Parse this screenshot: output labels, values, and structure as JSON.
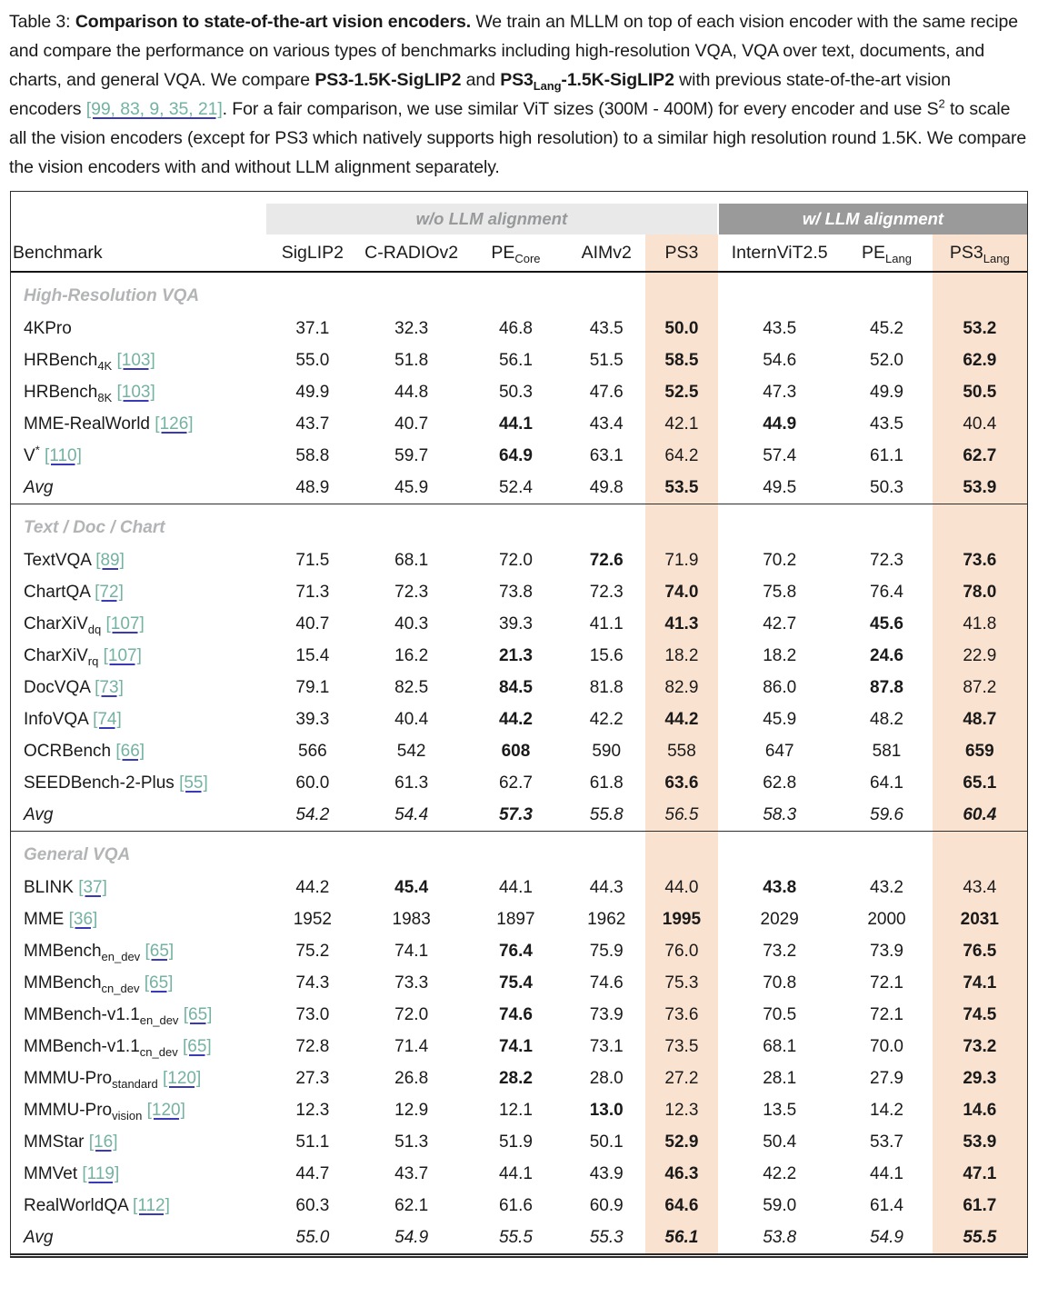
{
  "caption": {
    "segments": [
      {
        "text": "Table 3: "
      },
      {
        "text": "Comparison to state-of-the-art vision encoders.",
        "bold": true
      },
      {
        "text": " We train an MLLM on top of each vision encoder with the same recipe and compare the performance on various types of benchmarks including high-resolution VQA, VQA over text, documents, and charts, and general VQA. We compare "
      },
      {
        "text": "PS3-1.5K-SigLIP2",
        "bold": true
      },
      {
        "text": " and "
      },
      {
        "text": "PS3",
        "bold": true
      },
      {
        "text": "Lang",
        "bold": true,
        "sub": true
      },
      {
        "text": "-1.5K-SigLIP2",
        "bold": true
      },
      {
        "text": " with previous state-of-the-art vision encoders "
      },
      {
        "text": "[99, 83, 9, 35, 21]",
        "cite": true
      },
      {
        "text": ". For a fair comparison, we use similar ViT sizes (300M - 400M) for every encoder and use S"
      },
      {
        "text": "2",
        "sup": true
      },
      {
        "text": " to scale all the vision encoders (except for PS3 which natively supports high resolution) to a similar high resolution round 1.5K. We compare the vision encoders with and without LLM alignment separately."
      }
    ]
  },
  "table": {
    "group_headers": [
      {
        "label": "w/o LLM alignment",
        "span": 5,
        "style": "light"
      },
      {
        "label": "w/ LLM alignment",
        "span": 3,
        "style": "dark"
      }
    ],
    "columns": [
      {
        "label": "Benchmark"
      },
      {
        "label": "SigLIP2"
      },
      {
        "label": "C-RADIOv2"
      },
      {
        "label": "PE",
        "sub": "Core"
      },
      {
        "label": "AIMv2"
      },
      {
        "label": "PS3",
        "highlight": true
      },
      {
        "label": "InternViT2.5"
      },
      {
        "label": "PE",
        "sub": "Lang"
      },
      {
        "label": "PS3",
        "sub": "Lang",
        "highlight": true
      }
    ],
    "sections": [
      {
        "title": "High-Resolution VQA",
        "rows": [
          {
            "name": "4KPro",
            "values": [
              "37.1",
              "32.3",
              "46.8",
              "43.5",
              "50.0",
              "43.5",
              "45.2",
              "53.2"
            ],
            "bold": [
              4,
              7
            ]
          },
          {
            "name": "HRBench",
            "sub": "4K",
            "cite": "103",
            "values": [
              "55.0",
              "51.8",
              "56.1",
              "51.5",
              "58.5",
              "54.6",
              "52.0",
              "62.9"
            ],
            "bold": [
              4,
              7
            ]
          },
          {
            "name": "HRBench",
            "sub": "8K",
            "cite": "103",
            "values": [
              "49.9",
              "44.8",
              "50.3",
              "47.6",
              "52.5",
              "47.3",
              "49.9",
              "50.5"
            ],
            "bold": [
              4,
              7
            ]
          },
          {
            "name": "MME-RealWorld",
            "cite": "126",
            "values": [
              "43.7",
              "40.7",
              "44.1",
              "43.4",
              "42.1",
              "44.9",
              "43.5",
              "40.4"
            ],
            "bold": [
              2,
              5
            ]
          },
          {
            "name": "V",
            "sup": "*",
            "cite": "110",
            "values": [
              "58.8",
              "59.7",
              "64.9",
              "63.1",
              "64.2",
              "57.4",
              "61.1",
              "62.7"
            ],
            "bold": [
              2,
              7
            ]
          },
          {
            "name": "Avg",
            "italic": true,
            "values": [
              "48.9",
              "45.9",
              "52.4",
              "49.8",
              "53.5",
              "49.5",
              "50.3",
              "53.9"
            ],
            "bold": [
              4,
              7
            ]
          }
        ]
      },
      {
        "title": "Text / Doc / Chart",
        "rows": [
          {
            "name": "TextVQA",
            "cite": "89",
            "values": [
              "71.5",
              "68.1",
              "72.0",
              "72.6",
              "71.9",
              "70.2",
              "72.3",
              "73.6"
            ],
            "bold": [
              3,
              7
            ]
          },
          {
            "name": "ChartQA",
            "cite": "72",
            "values": [
              "71.3",
              "72.3",
              "73.8",
              "72.3",
              "74.0",
              "75.8",
              "76.4",
              "78.0"
            ],
            "bold": [
              4,
              7
            ]
          },
          {
            "name": "CharXiV",
            "sub": "dq",
            "cite": "107",
            "values": [
              "40.7",
              "40.3",
              "39.3",
              "41.1",
              "41.3",
              "42.7",
              "45.6",
              "41.8"
            ],
            "bold": [
              4,
              6
            ]
          },
          {
            "name": "CharXiV",
            "sub": "rq",
            "cite": "107",
            "values": [
              "15.4",
              "16.2",
              "21.3",
              "15.6",
              "18.2",
              "18.2",
              "24.6",
              "22.9"
            ],
            "bold": [
              2,
              6
            ]
          },
          {
            "name": "DocVQA",
            "cite": "73",
            "values": [
              "79.1",
              "82.5",
              "84.5",
              "81.8",
              "82.9",
              "86.0",
              "87.8",
              "87.2"
            ],
            "bold": [
              2,
              6
            ]
          },
          {
            "name": "InfoVQA",
            "cite": "74",
            "values": [
              "39.3",
              "40.4",
              "44.2",
              "42.2",
              "44.2",
              "45.9",
              "48.2",
              "48.7"
            ],
            "bold": [
              2,
              4,
              7
            ]
          },
          {
            "name": "OCRBench",
            "cite": "66",
            "values": [
              "566",
              "542",
              "608",
              "590",
              "558",
              "647",
              "581",
              "659"
            ],
            "bold": [
              2,
              7
            ]
          },
          {
            "name": "SEEDBench-2-Plus",
            "cite": "55",
            "values": [
              "60.0",
              "61.3",
              "62.7",
              "61.8",
              "63.6",
              "62.8",
              "64.1",
              "65.1"
            ],
            "bold": [
              4,
              7
            ]
          },
          {
            "name": "Avg",
            "italic": true,
            "values_italic": true,
            "values": [
              "54.2",
              "54.4",
              "57.3",
              "55.8",
              "56.5",
              "58.3",
              "59.6",
              "60.4"
            ],
            "bold": [
              2,
              7
            ]
          }
        ]
      },
      {
        "title": "General VQA",
        "rows": [
          {
            "name": "BLINK",
            "cite": "37",
            "values": [
              "44.2",
              "45.4",
              "44.1",
              "44.3",
              "44.0",
              "43.8",
              "43.2",
              "43.4"
            ],
            "bold": [
              1,
              5
            ]
          },
          {
            "name": "MME",
            "cite": "36",
            "values": [
              "1952",
              "1983",
              "1897",
              "1962",
              "1995",
              "2029",
              "2000",
              "2031"
            ],
            "bold": [
              4,
              7
            ]
          },
          {
            "name": "MMBench",
            "sub": "en_dev",
            "cite": "65",
            "values": [
              "75.2",
              "74.1",
              "76.4",
              "75.9",
              "76.0",
              "73.2",
              "73.9",
              "76.5"
            ],
            "bold": [
              2,
              7
            ]
          },
          {
            "name": "MMBench",
            "sub": "cn_dev",
            "cite": "65",
            "values": [
              "74.3",
              "73.3",
              "75.4",
              "74.6",
              "75.3",
              "70.8",
              "72.1",
              "74.1"
            ],
            "bold": [
              2,
              7
            ]
          },
          {
            "name": "MMBench-v1.1",
            "sub": "en_dev",
            "cite": "65",
            "values": [
              "73.0",
              "72.0",
              "74.6",
              "73.9",
              "73.6",
              "70.5",
              "72.1",
              "74.5"
            ],
            "bold": [
              2,
              7
            ]
          },
          {
            "name": "MMBench-v1.1",
            "sub": "cn_dev",
            "cite": "65",
            "values": [
              "72.8",
              "71.4",
              "74.1",
              "73.1",
              "73.5",
              "68.1",
              "70.0",
              "73.2"
            ],
            "bold": [
              2,
              7
            ]
          },
          {
            "name": "MMMU-Pro",
            "sub": "standard",
            "cite": "120",
            "values": [
              "27.3",
              "26.8",
              "28.2",
              "28.0",
              "27.2",
              "28.1",
              "27.9",
              "29.3"
            ],
            "bold": [
              2,
              7
            ]
          },
          {
            "name": "MMMU-Pro",
            "sub": "vision",
            "cite": "120",
            "values": [
              "12.3",
              "12.9",
              "12.1",
              "13.0",
              "12.3",
              "13.5",
              "14.2",
              "14.6"
            ],
            "bold": [
              3,
              7
            ]
          },
          {
            "name": "MMStar",
            "cite": "16",
            "values": [
              "51.1",
              "51.3",
              "51.9",
              "50.1",
              "52.9",
              "50.4",
              "53.7",
              "53.9"
            ],
            "bold": [
              4,
              7
            ]
          },
          {
            "name": "MMVet",
            "cite": "119",
            "values": [
              "44.7",
              "43.7",
              "44.1",
              "43.9",
              "46.3",
              "42.2",
              "44.1",
              "47.1"
            ],
            "bold": [
              4,
              7
            ]
          },
          {
            "name": "RealWorldQA",
            "cite": "112",
            "values": [
              "60.3",
              "62.1",
              "61.6",
              "60.9",
              "64.6",
              "59.0",
              "61.4",
              "61.7"
            ],
            "bold": [
              4,
              7
            ]
          },
          {
            "name": "Avg",
            "italic": true,
            "values_italic": true,
            "values": [
              "55.0",
              "54.9",
              "55.5",
              "55.3",
              "56.1",
              "53.8",
              "54.9",
              "55.5"
            ],
            "bold": [
              4,
              7
            ]
          }
        ]
      }
    ]
  },
  "colors": {
    "highlight_peach": "#fae2d0",
    "group_light_bg": "#e9e9e9",
    "group_light_text": "#97999b",
    "group_dark_bg": "#9a9a9b",
    "group_dark_text": "#ffffff",
    "section_title_gray": "#b2b4b6",
    "citation_teal": "#74b2a2",
    "link_underline_blue": "#3a3ab8",
    "body_text": "#1a1a1a"
  }
}
